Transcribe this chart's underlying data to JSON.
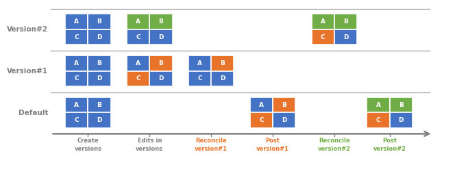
{
  "row_labels": [
    "Version#2",
    "Version#1",
    "Default"
  ],
  "col_labels": [
    "Create\nversions",
    "Edits in\nversions",
    "Reconcile\nversion#1",
    "Post\nversion#1",
    "Reconcile\nversion#2",
    "Post\nversion#2"
  ],
  "col_label_colors": [
    "#808080",
    "#808080",
    "#E8732A",
    "#E8732A",
    "#70AD47",
    "#70AD47"
  ],
  "grid_cells": [
    {
      "row": 0,
      "col": 0,
      "colors": [
        "blue",
        "blue",
        "blue",
        "blue"
      ]
    },
    {
      "row": 0,
      "col": 1,
      "colors": [
        "green",
        "green",
        "blue",
        "blue"
      ]
    },
    {
      "row": 0,
      "col": 4,
      "colors": [
        "green",
        "green",
        "orange",
        "blue"
      ]
    },
    {
      "row": 1,
      "col": 0,
      "colors": [
        "blue",
        "blue",
        "blue",
        "blue"
      ]
    },
    {
      "row": 1,
      "col": 1,
      "colors": [
        "blue",
        "orange",
        "orange",
        "blue"
      ]
    },
    {
      "row": 1,
      "col": 2,
      "colors": [
        "blue",
        "orange",
        "blue",
        "blue"
      ]
    },
    {
      "row": 2,
      "col": 0,
      "colors": [
        "blue",
        "blue",
        "blue",
        "blue"
      ]
    },
    {
      "row": 2,
      "col": 3,
      "colors": [
        "blue",
        "orange",
        "orange",
        "blue"
      ]
    },
    {
      "row": 2,
      "col": 5,
      "colors": [
        "green",
        "green",
        "orange",
        "blue"
      ]
    }
  ],
  "color_map": {
    "blue": "#4472C4",
    "orange": "#E8732A",
    "green": "#70AD47"
  },
  "letters": [
    "A",
    "B",
    "C",
    "D"
  ],
  "row_label_color": "#808080",
  "line_color": "#A0A0A0",
  "arrow_color": "#808080"
}
